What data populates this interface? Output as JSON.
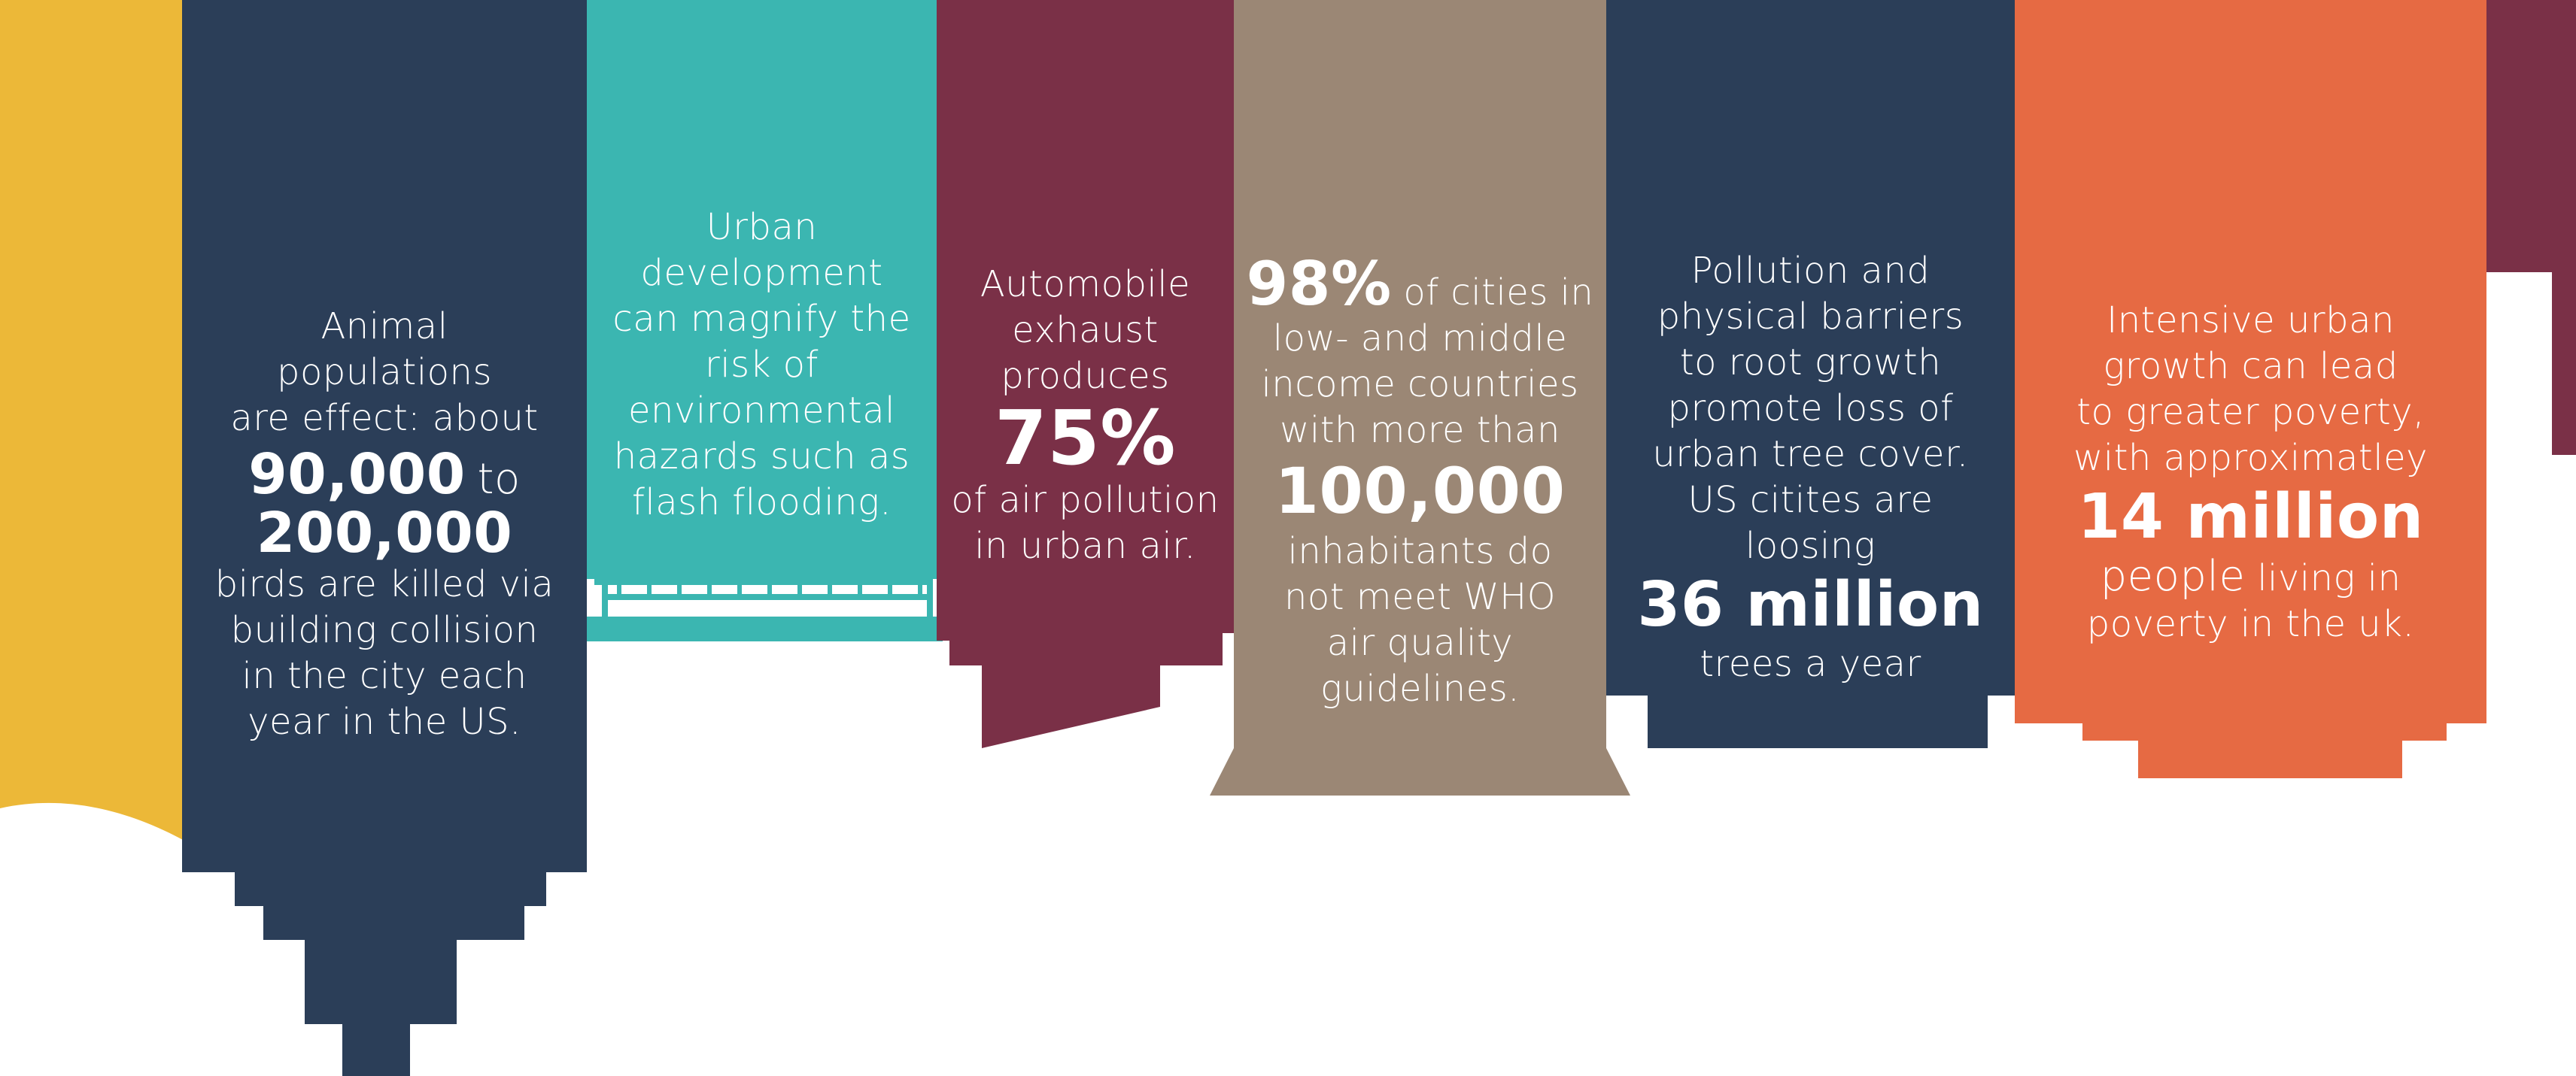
{
  "colors": {
    "yellow": "#ECB838",
    "navy": "#2B3E58",
    "teal": "#3BB6B1",
    "maroon": "#7A3047",
    "taupe": "#9B8775",
    "orange": "#E66A43",
    "background": "#FFFFFF",
    "text": "#FFFFFF"
  },
  "panels": {
    "birds": {
      "intro": [
        "Animal",
        "populations",
        "are effect: about"
      ],
      "stat_a": "90,000",
      "joiner": "to",
      "stat_b": "200,000",
      "outro": [
        "birds are killed via",
        "building collision",
        "in the city each",
        "year in the US."
      ]
    },
    "flooding": {
      "lines": [
        "Urban",
        "development",
        "can magnify the",
        "risk of",
        "environmental",
        "hazards such as",
        "flash flooding."
      ]
    },
    "exhaust": {
      "intro": [
        "Automobile",
        "exhaust",
        "produces"
      ],
      "stat": "75%",
      "outro": [
        "of air pollution",
        "in urban air."
      ]
    },
    "air_quality": {
      "stat_a": "98%",
      "line1_rest": "of cities in",
      "intro": [
        "low- and middle",
        "income countries",
        "with more than"
      ],
      "stat_b": "100,000",
      "outro": [
        "inhabitants do",
        "not meet WHO",
        "air quality",
        "guidelines."
      ]
    },
    "trees": {
      "intro": [
        "Pollution and",
        "physical barriers",
        "to root growth",
        "promote loss of",
        "urban tree cover.",
        "US citites are",
        "loosing"
      ],
      "stat": "36 million",
      "outro": [
        "trees a year"
      ]
    },
    "poverty": {
      "intro": [
        "Intensive urban",
        "growth can lead",
        "to greater poverty,",
        "with approximatley"
      ],
      "stat": "14 million",
      "people": "people",
      "people_rest": "living in",
      "outro": [
        "poverty in the uk."
      ]
    }
  }
}
